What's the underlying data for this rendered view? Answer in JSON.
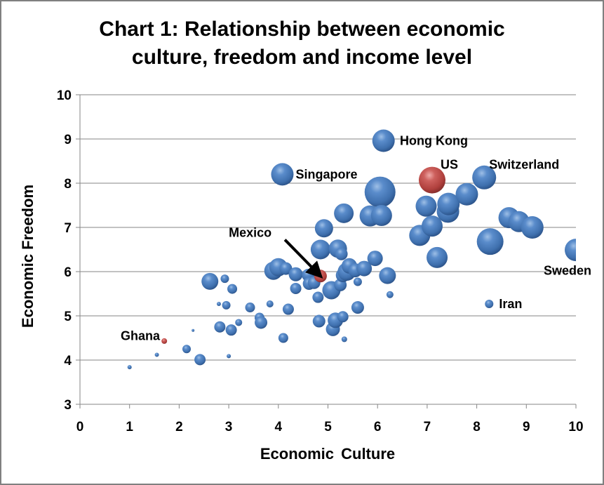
{
  "chart_data": {
    "type": "bubble",
    "title": "Chart 1: Relationship between economic culture, freedom and income level",
    "title_lines": [
      "Chart 1: Relationship between economic",
      "culture, freedom and income level"
    ],
    "xlabel": "Economic  Culture",
    "ylabel": "Economic Freedom",
    "xlim": [
      0,
      10
    ],
    "ylim": [
      3,
      10
    ],
    "xticks": [
      0,
      1,
      2,
      3,
      4,
      5,
      6,
      7,
      8,
      9,
      10
    ],
    "yticks": [
      3,
      4,
      5,
      6,
      7,
      8,
      9,
      10
    ],
    "grid": "horizontal",
    "legend": "none",
    "colors": {
      "default": "#4f81bd",
      "highlight": "#c0504d",
      "grid": "#868686",
      "axis": "#868686"
    },
    "series": [
      {
        "name": "countries",
        "points": [
          {
            "x": 1.0,
            "y": 3.84,
            "r": 3
          },
          {
            "x": 1.55,
            "y": 4.12,
            "r": 3
          },
          {
            "x": 2.15,
            "y": 4.25,
            "r": 6
          },
          {
            "x": 2.28,
            "y": 4.67,
            "r": 2
          },
          {
            "x": 2.42,
            "y": 4.01,
            "r": 8
          },
          {
            "x": 2.62,
            "y": 5.78,
            "r": 12
          },
          {
            "x": 2.8,
            "y": 5.27,
            "r": 3
          },
          {
            "x": 2.82,
            "y": 4.75,
            "r": 8
          },
          {
            "x": 2.92,
            "y": 5.84,
            "r": 6
          },
          {
            "x": 2.95,
            "y": 5.24,
            "r": 6
          },
          {
            "x": 3.0,
            "y": 4.09,
            "r": 3
          },
          {
            "x": 3.05,
            "y": 4.68,
            "r": 8
          },
          {
            "x": 3.07,
            "y": 5.61,
            "r": 7
          },
          {
            "x": 3.2,
            "y": 4.85,
            "r": 5
          },
          {
            "x": 3.43,
            "y": 5.19,
            "r": 7
          },
          {
            "x": 3.62,
            "y": 4.96,
            "r": 7
          },
          {
            "x": 3.65,
            "y": 4.85,
            "r": 9
          },
          {
            "x": 3.83,
            "y": 5.27,
            "r": 5
          },
          {
            "x": 3.9,
            "y": 6.02,
            "r": 13
          },
          {
            "x": 4.0,
            "y": 6.1,
            "r": 13
          },
          {
            "x": 4.1,
            "y": 4.5,
            "r": 7
          },
          {
            "x": 4.15,
            "y": 6.07,
            "r": 9
          },
          {
            "x": 4.2,
            "y": 5.15,
            "r": 8
          },
          {
            "x": 4.35,
            "y": 5.62,
            "r": 8
          },
          {
            "x": 4.35,
            "y": 5.94,
            "r": 10
          },
          {
            "x": 4.6,
            "y": 5.92,
            "r": 9
          },
          {
            "x": 4.62,
            "y": 5.73,
            "r": 9
          },
          {
            "x": 4.72,
            "y": 5.75,
            "r": 9
          },
          {
            "x": 4.8,
            "y": 5.42,
            "r": 8
          },
          {
            "x": 4.82,
            "y": 4.88,
            "r": 9
          },
          {
            "x": 4.85,
            "y": 6.5,
            "r": 14
          },
          {
            "x": 4.92,
            "y": 6.98,
            "r": 13
          },
          {
            "x": 5.07,
            "y": 5.58,
            "r": 13
          },
          {
            "x": 5.1,
            "y": 4.7,
            "r": 10
          },
          {
            "x": 5.15,
            "y": 4.9,
            "r": 11
          },
          {
            "x": 5.2,
            "y": 6.52,
            "r": 13
          },
          {
            "x": 5.25,
            "y": 5.7,
            "r": 9
          },
          {
            "x": 5.27,
            "y": 6.4,
            "r": 9
          },
          {
            "x": 5.3,
            "y": 4.98,
            "r": 8
          },
          {
            "x": 5.3,
            "y": 5.92,
            "r": 10
          },
          {
            "x": 5.32,
            "y": 7.32,
            "r": 14
          },
          {
            "x": 5.33,
            "y": 4.47,
            "r": 4
          },
          {
            "x": 5.38,
            "y": 6.0,
            "r": 13
          },
          {
            "x": 5.43,
            "y": 6.13,
            "r": 11
          },
          {
            "x": 5.55,
            "y": 6.03,
            "r": 10
          },
          {
            "x": 5.6,
            "y": 5.77,
            "r": 6
          },
          {
            "x": 5.6,
            "y": 5.19,
            "r": 9
          },
          {
            "x": 5.73,
            "y": 6.07,
            "r": 11
          },
          {
            "x": 5.85,
            "y": 7.26,
            "r": 15
          },
          {
            "x": 5.95,
            "y": 6.3,
            "r": 11
          },
          {
            "x": 6.05,
            "y": 7.8,
            "r": 22
          },
          {
            "x": 6.08,
            "y": 7.27,
            "r": 15
          },
          {
            "x": 6.12,
            "y": 8.96,
            "r": 16,
            "label": "Hong Kong"
          },
          {
            "x": 6.2,
            "y": 5.91,
            "r": 12
          },
          {
            "x": 6.25,
            "y": 5.48,
            "r": 5
          },
          {
            "x": 4.08,
            "y": 8.2,
            "r": 16,
            "label": "Singapore"
          },
          {
            "x": 6.85,
            "y": 6.82,
            "r": 15
          },
          {
            "x": 6.98,
            "y": 7.48,
            "r": 15
          },
          {
            "x": 7.1,
            "y": 8.07,
            "r": 19,
            "label": "US",
            "highlight": true
          },
          {
            "x": 7.1,
            "y": 7.03,
            "r": 15
          },
          {
            "x": 7.2,
            "y": 6.32,
            "r": 15
          },
          {
            "x": 7.42,
            "y": 7.36,
            "r": 16
          },
          {
            "x": 7.43,
            "y": 7.53,
            "r": 16
          },
          {
            "x": 7.8,
            "y": 7.75,
            "r": 16
          },
          {
            "x": 8.15,
            "y": 8.13,
            "r": 17,
            "label": "Switzerland"
          },
          {
            "x": 8.27,
            "y": 6.68,
            "r": 19
          },
          {
            "x": 8.25,
            "y": 5.27,
            "r": 6,
            "label": "Iran"
          },
          {
            "x": 8.65,
            "y": 7.22,
            "r": 15
          },
          {
            "x": 8.85,
            "y": 7.13,
            "r": 15
          },
          {
            "x": 9.12,
            "y": 7.0,
            "r": 16
          },
          {
            "x": 10.0,
            "y": 6.49,
            "r": 16,
            "label": "Sweden"
          },
          {
            "x": 4.85,
            "y": 5.9,
            "r": 9,
            "label": "Mexico",
            "highlight": true
          },
          {
            "x": 1.7,
            "y": 4.43,
            "r": 4,
            "label": "Ghana",
            "highlight": true
          }
        ]
      }
    ],
    "annotations": [
      {
        "text": "Hong Kong",
        "x": 6.45,
        "y": 8.96
      },
      {
        "text": "Singapore",
        "x": 4.35,
        "y": 8.2
      },
      {
        "text": "US",
        "x": 7.27,
        "y": 8.42
      },
      {
        "text": "Switzerland",
        "x": 8.25,
        "y": 8.42
      },
      {
        "text": "Sweden",
        "x": 9.35,
        "y": 6.02
      },
      {
        "text": "Iran",
        "x": 8.45,
        "y": 5.27
      },
      {
        "text": "Mexico",
        "x": 3.0,
        "y": 6.88,
        "arrow_to": [
          4.85,
          5.9
        ]
      },
      {
        "text": "Ghana",
        "x": 0.82,
        "y": 4.55
      }
    ]
  }
}
